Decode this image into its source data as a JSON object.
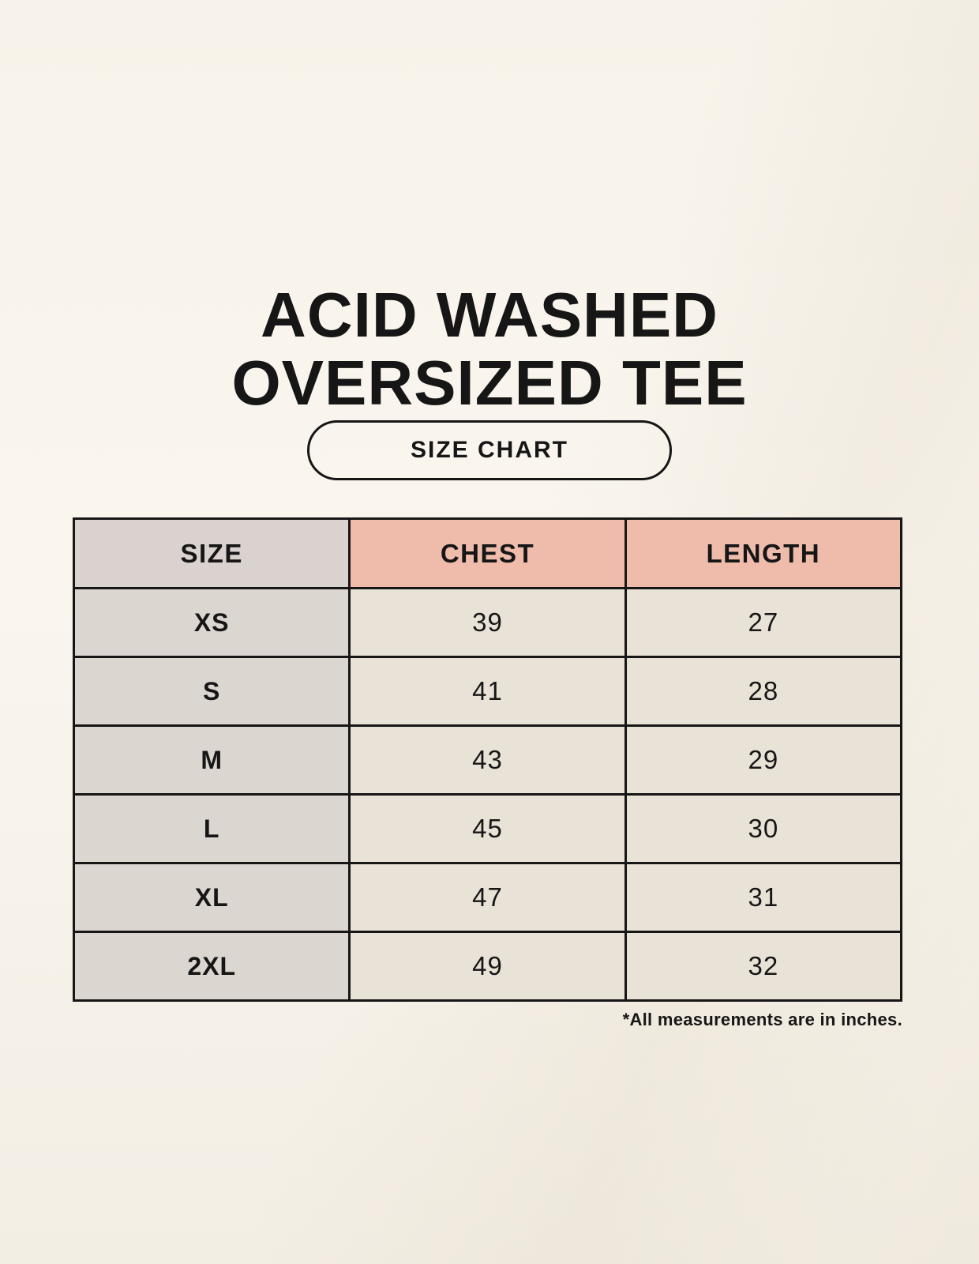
{
  "title": {
    "line1": "ACID WASHED",
    "line2": "OVERSIZED TEE"
  },
  "button": {
    "label": "SIZE CHART"
  },
  "colors": {
    "page-bg": "#f7f3ea",
    "header-size-bg": "#d9d2ce",
    "header-accent-bg": "#efbcac",
    "size-col-bg": "#dcd6d1",
    "cell-bg": "#e9e2d6",
    "border-ink": "#161616",
    "text-ink": "#161616"
  },
  "chart_data": {
    "type": "table",
    "title": "ACID WASHED OVERSIZED TEE",
    "subtitle": "SIZE CHART",
    "columns": [
      "SIZE",
      "CHEST",
      "LENGTH"
    ],
    "rows": [
      [
        "XS",
        "39",
        "27"
      ],
      [
        "S",
        "41",
        "28"
      ],
      [
        "M",
        "43",
        "29"
      ],
      [
        "L",
        "45",
        "30"
      ],
      [
        "XL",
        "47",
        "31"
      ],
      [
        "2XL",
        "49",
        "32"
      ]
    ],
    "units": "inches",
    "note": "*All measurements are in inches."
  }
}
